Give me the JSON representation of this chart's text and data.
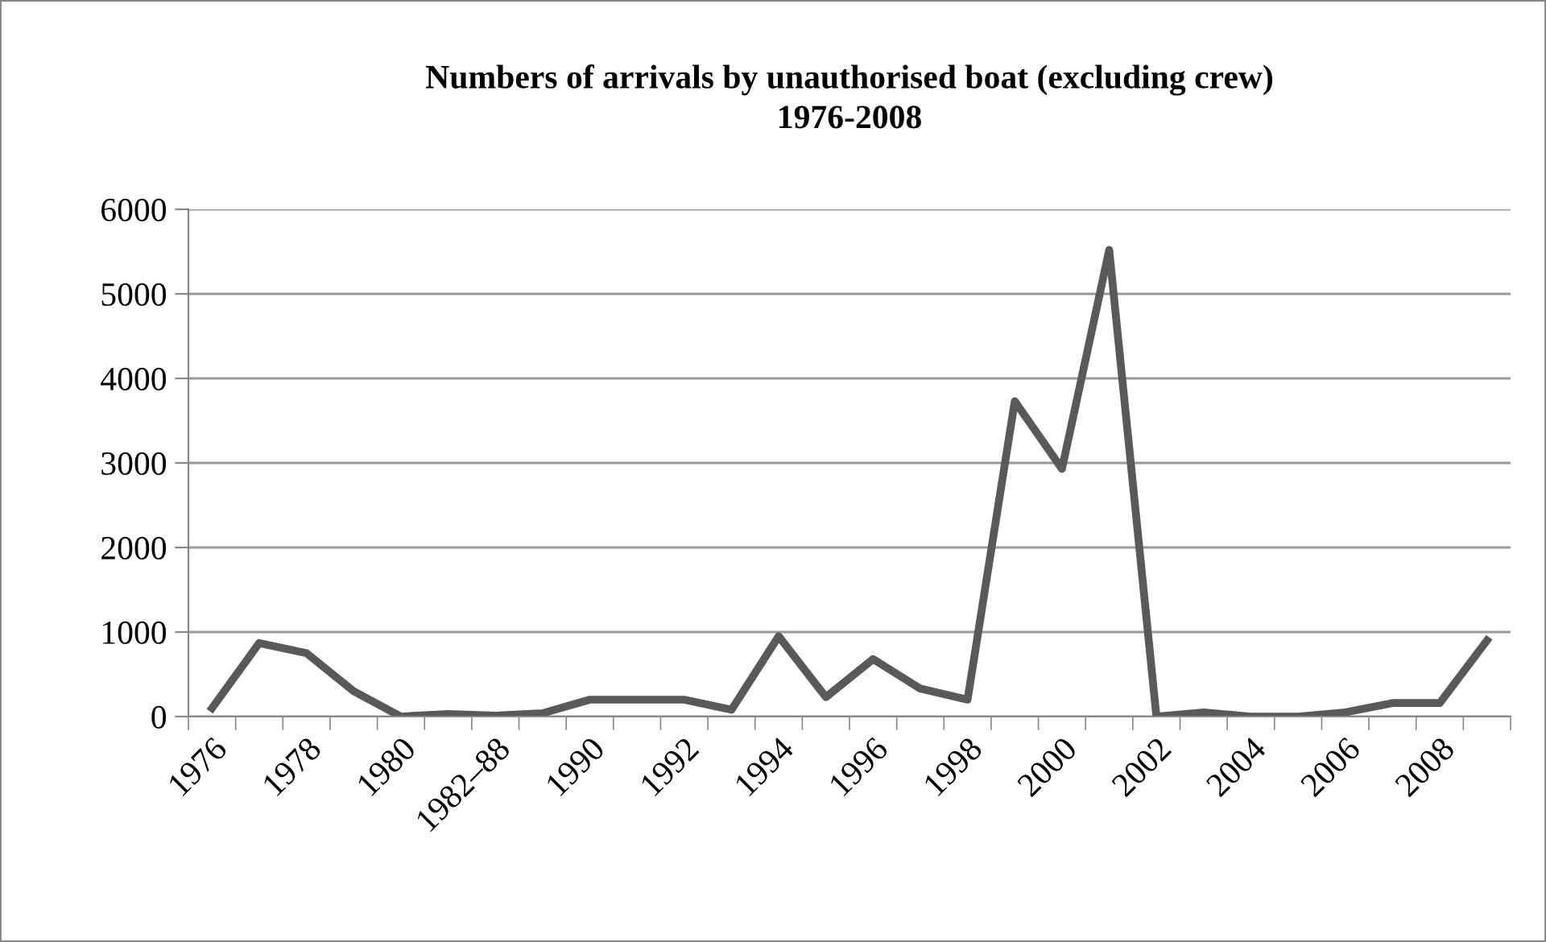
{
  "chart_data": {
    "type": "line",
    "title": "Numbers of arrivals by unauthorised boat (excluding crew)\n1976-2008",
    "categories": [
      "1976",
      null,
      "1978",
      null,
      "1980",
      null,
      "1982–88",
      null,
      "1990",
      null,
      "1992",
      null,
      "1994",
      null,
      "1996",
      null,
      "1998",
      null,
      "2000",
      null,
      "2002",
      null,
      "2004",
      null,
      "2006",
      null,
      "2008",
      null
    ],
    "series": [
      {
        "color": "#595959",
        "values": [
          100,
          870,
          750,
          300,
          0,
          30,
          10,
          40,
          200,
          200,
          200,
          80,
          950,
          230,
          680,
          330,
          200,
          3730,
          2930,
          5520,
          0,
          50,
          0,
          0,
          50,
          160,
          160,
          900
        ]
      }
    ],
    "ylim": [
      0,
      6000
    ],
    "yticks": [
      0,
      1000,
      2000,
      3000,
      4000,
      5000,
      6000
    ],
    "grid": "y",
    "marker": "none",
    "line_style": "solid"
  }
}
